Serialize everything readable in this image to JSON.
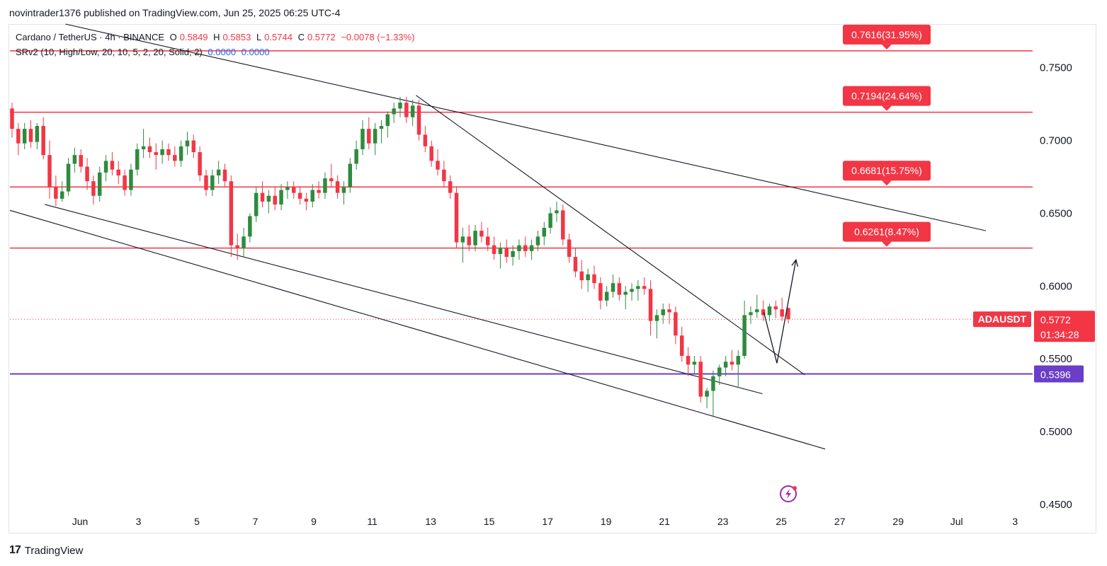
{
  "header": {
    "attribution": "novintrader1376 published on TradingView.com, Jun 25, 2025 06:25 UTC-4"
  },
  "legend": {
    "symbol": "Cardano / TetherUS · 4h · BINANCE",
    "open_label": "O",
    "open": "0.5849",
    "high_label": "H",
    "high": "0.5853",
    "low_label": "L",
    "low": "0.5744",
    "close_label": "C",
    "close": "0.5772",
    "change": "−0.0078 (−1.33%)",
    "indicator": "SRv2 (10, High/Low, 20, 10, 5, 2, 20, Solid, 2)",
    "indicator_v1": "0.0000",
    "indicator_v2": "0.0000"
  },
  "footer": {
    "brand": "TradingView",
    "brand_mark": "17"
  },
  "colors": {
    "up": "#26a69a",
    "up_body": "#2e8b3e",
    "down": "#f23645",
    "resistance": "#f23645",
    "support": "#6a3ec8",
    "trendline": "#131722"
  },
  "chart_data": {
    "type": "candlestick",
    "title": "Cardano / TetherUS · 4h · BINANCE",
    "x_ticks": [
      "Jun",
      "3",
      "5",
      "7",
      "9",
      "11",
      "13",
      "15",
      "17",
      "19",
      "21",
      "23",
      "25",
      "27",
      "29",
      "Jul",
      "3"
    ],
    "y_ticks": [
      "0.7500",
      "0.7000",
      "0.6500",
      "0.6000",
      "0.5500",
      "0.5000",
      "0.4500"
    ],
    "ylim": [
      0.43,
      0.78
    ],
    "xlim_days": [
      -2.4,
      32.6
    ],
    "last_price": {
      "label": "ADAUSDT",
      "value": "0.5772",
      "countdown": "01:34:28"
    },
    "support_level": {
      "value": 0.5396,
      "label": "0.5396"
    },
    "resistance_levels": [
      {
        "value": 0.7616,
        "label": "0.7616(31.95%)"
      },
      {
        "value": 0.7194,
        "label": "0.7194(24.64%)"
      },
      {
        "value": 0.6681,
        "label": "0.6681(15.75%)"
      },
      {
        "value": 0.6261,
        "label": "0.6261(8.47%)"
      }
    ],
    "trendlines": [
      {
        "from": [
          -0.5,
          0.78
        ],
        "to": [
          31.0,
          0.638
        ]
      },
      {
        "from": [
          11.5,
          0.731
        ],
        "to": [
          24.8,
          0.539
        ]
      },
      {
        "from": [
          -2.4,
          0.652
        ],
        "to": [
          25.5,
          0.488
        ]
      },
      {
        "from": [
          -1.2,
          0.656
        ],
        "to": [
          23.35,
          0.526
        ]
      }
    ],
    "projection": [
      [
        23.4,
        0.582
      ],
      [
        23.85,
        0.547
      ],
      [
        24.5,
        0.618
      ]
    ],
    "candles": [
      [
        0.722,
        0.726,
        0.702,
        0.708
      ],
      [
        0.708,
        0.712,
        0.69,
        0.698
      ],
      [
        0.698,
        0.712,
        0.694,
        0.708
      ],
      [
        0.708,
        0.714,
        0.695,
        0.699
      ],
      [
        0.699,
        0.712,
        0.694,
        0.71
      ],
      [
        0.71,
        0.716,
        0.687,
        0.69
      ],
      [
        0.69,
        0.7,
        0.66,
        0.668
      ],
      [
        0.668,
        0.676,
        0.655,
        0.66
      ],
      [
        0.66,
        0.672,
        0.658,
        0.665
      ],
      [
        0.665,
        0.688,
        0.662,
        0.684
      ],
      [
        0.684,
        0.695,
        0.678,
        0.69
      ],
      [
        0.69,
        0.694,
        0.678,
        0.682
      ],
      [
        0.682,
        0.688,
        0.666,
        0.672
      ],
      [
        0.672,
        0.676,
        0.656,
        0.662
      ],
      [
        0.662,
        0.682,
        0.658,
        0.678
      ],
      [
        0.678,
        0.69,
        0.672,
        0.686
      ],
      [
        0.686,
        0.692,
        0.676,
        0.68
      ],
      [
        0.68,
        0.686,
        0.67,
        0.676
      ],
      [
        0.676,
        0.68,
        0.662,
        0.666
      ],
      [
        0.666,
        0.684,
        0.662,
        0.68
      ],
      [
        0.68,
        0.698,
        0.676,
        0.694
      ],
      [
        0.694,
        0.708,
        0.688,
        0.696
      ],
      [
        0.696,
        0.702,
        0.688,
        0.692
      ],
      [
        0.692,
        0.698,
        0.68,
        0.69
      ],
      [
        0.69,
        0.7,
        0.684,
        0.694
      ],
      [
        0.694,
        0.698,
        0.686,
        0.69
      ],
      [
        0.69,
        0.696,
        0.682,
        0.686
      ],
      [
        0.686,
        0.7,
        0.682,
        0.696
      ],
      [
        0.696,
        0.706,
        0.69,
        0.7
      ],
      [
        0.7,
        0.704,
        0.688,
        0.692
      ],
      [
        0.692,
        0.696,
        0.672,
        0.676
      ],
      [
        0.676,
        0.68,
        0.662,
        0.666
      ],
      [
        0.666,
        0.68,
        0.662,
        0.676
      ],
      [
        0.676,
        0.686,
        0.67,
        0.68
      ],
      [
        0.68,
        0.684,
        0.668,
        0.672
      ],
      [
        0.672,
        0.676,
        0.62,
        0.628
      ],
      [
        0.628,
        0.636,
        0.618,
        0.626
      ],
      [
        0.626,
        0.64,
        0.62,
        0.634
      ],
      [
        0.634,
        0.65,
        0.63,
        0.648
      ],
      [
        0.648,
        0.668,
        0.644,
        0.664
      ],
      [
        0.664,
        0.672,
        0.654,
        0.658
      ],
      [
        0.658,
        0.666,
        0.65,
        0.662
      ],
      [
        0.662,
        0.668,
        0.652,
        0.656
      ],
      [
        0.656,
        0.67,
        0.652,
        0.666
      ],
      [
        0.666,
        0.672,
        0.66,
        0.668
      ],
      [
        0.668,
        0.672,
        0.66,
        0.664
      ],
      [
        0.664,
        0.668,
        0.656,
        0.66
      ],
      [
        0.66,
        0.664,
        0.652,
        0.658
      ],
      [
        0.658,
        0.67,
        0.654,
        0.666
      ],
      [
        0.666,
        0.672,
        0.66,
        0.664
      ],
      [
        0.664,
        0.678,
        0.66,
        0.674
      ],
      [
        0.674,
        0.684,
        0.668,
        0.672
      ],
      [
        0.672,
        0.676,
        0.66,
        0.664
      ],
      [
        0.664,
        0.672,
        0.656,
        0.668
      ],
      [
        0.668,
        0.688,
        0.664,
        0.684
      ],
      [
        0.684,
        0.7,
        0.68,
        0.694
      ],
      [
        0.694,
        0.714,
        0.69,
        0.708
      ],
      [
        0.708,
        0.716,
        0.694,
        0.698
      ],
      [
        0.698,
        0.712,
        0.69,
        0.708
      ],
      [
        0.708,
        0.714,
        0.698,
        0.71
      ],
      [
        0.71,
        0.72,
        0.702,
        0.718
      ],
      [
        0.718,
        0.726,
        0.712,
        0.722
      ],
      [
        0.722,
        0.73,
        0.716,
        0.726
      ],
      [
        0.726,
        0.73,
        0.712,
        0.716
      ],
      [
        0.716,
        0.728,
        0.71,
        0.724
      ],
      [
        0.724,
        0.728,
        0.7,
        0.704
      ],
      [
        0.704,
        0.71,
        0.692,
        0.696
      ],
      [
        0.696,
        0.7,
        0.682,
        0.686
      ],
      [
        0.686,
        0.694,
        0.676,
        0.68
      ],
      [
        0.68,
        0.686,
        0.668,
        0.672
      ],
      [
        0.672,
        0.676,
        0.66,
        0.664
      ],
      [
        0.664,
        0.668,
        0.626,
        0.63
      ],
      [
        0.63,
        0.64,
        0.616,
        0.634
      ],
      [
        0.634,
        0.642,
        0.624,
        0.628
      ],
      [
        0.628,
        0.642,
        0.624,
        0.638
      ],
      [
        0.638,
        0.644,
        0.63,
        0.634
      ],
      [
        0.634,
        0.64,
        0.624,
        0.628
      ],
      [
        0.628,
        0.634,
        0.618,
        0.622
      ],
      [
        0.622,
        0.63,
        0.612,
        0.626
      ],
      [
        0.626,
        0.632,
        0.616,
        0.62
      ],
      [
        0.62,
        0.628,
        0.614,
        0.624
      ],
      [
        0.624,
        0.632,
        0.618,
        0.628
      ],
      [
        0.628,
        0.634,
        0.62,
        0.624
      ],
      [
        0.624,
        0.632,
        0.618,
        0.628
      ],
      [
        0.628,
        0.638,
        0.624,
        0.634
      ],
      [
        0.634,
        0.644,
        0.628,
        0.64
      ],
      [
        0.64,
        0.654,
        0.636,
        0.65
      ],
      [
        0.65,
        0.658,
        0.644,
        0.652
      ],
      [
        0.652,
        0.656,
        0.628,
        0.632
      ],
      [
        0.632,
        0.636,
        0.616,
        0.62
      ],
      [
        0.62,
        0.626,
        0.606,
        0.61
      ],
      [
        0.61,
        0.618,
        0.598,
        0.604
      ],
      [
        0.604,
        0.612,
        0.596,
        0.608
      ],
      [
        0.608,
        0.614,
        0.598,
        0.602
      ],
      [
        0.602,
        0.606,
        0.584,
        0.59
      ],
      [
        0.59,
        0.6,
        0.586,
        0.596
      ],
      [
        0.596,
        0.608,
        0.592,
        0.602
      ],
      [
        0.602,
        0.606,
        0.59,
        0.594
      ],
      [
        0.594,
        0.6,
        0.584,
        0.596
      ],
      [
        0.596,
        0.602,
        0.59,
        0.598
      ],
      [
        0.598,
        0.604,
        0.59,
        0.6
      ],
      [
        0.6,
        0.606,
        0.594,
        0.598
      ],
      [
        0.598,
        0.604,
        0.566,
        0.576
      ],
      [
        0.576,
        0.584,
        0.564,
        0.58
      ],
      [
        0.58,
        0.588,
        0.574,
        0.584
      ],
      [
        0.584,
        0.588,
        0.574,
        0.582
      ],
      [
        0.582,
        0.586,
        0.56,
        0.566
      ],
      [
        0.566,
        0.572,
        0.548,
        0.552
      ],
      [
        0.552,
        0.558,
        0.538,
        0.546
      ],
      [
        0.546,
        0.552,
        0.54,
        0.548
      ],
      [
        0.548,
        0.552,
        0.52,
        0.524
      ],
      [
        0.524,
        0.53,
        0.516,
        0.528
      ],
      [
        0.528,
        0.542,
        0.51,
        0.538
      ],
      [
        0.538,
        0.546,
        0.532,
        0.544
      ],
      [
        0.544,
        0.552,
        0.538,
        0.548
      ],
      [
        0.548,
        0.556,
        0.542,
        0.546
      ],
      [
        0.546,
        0.556,
        0.53,
        0.552
      ],
      [
        0.552,
        0.59,
        0.55,
        0.58
      ],
      [
        0.58,
        0.586,
        0.574,
        0.582
      ],
      [
        0.582,
        0.594,
        0.578,
        0.584
      ],
      [
        0.584,
        0.59,
        0.576,
        0.58
      ],
      [
        0.58,
        0.588,
        0.576,
        0.586
      ],
      [
        0.586,
        0.59,
        0.578,
        0.584
      ],
      [
        0.584,
        0.592,
        0.576,
        0.579
      ],
      [
        0.5849,
        0.5853,
        0.5744,
        0.5772
      ]
    ]
  }
}
